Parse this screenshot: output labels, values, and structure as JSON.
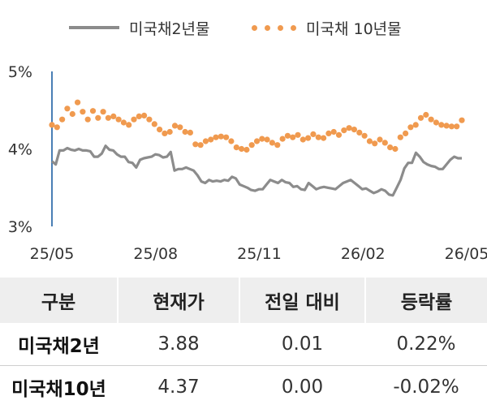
{
  "chart_data": {
    "type": "line",
    "title": "",
    "xlabel": "",
    "ylabel": "",
    "ylim": [
      3,
      5
    ],
    "yticks": [
      "3%",
      "4%",
      "5%"
    ],
    "xticks": [
      "25/05",
      "25/08",
      "25/11",
      "26/02",
      "26/05"
    ],
    "legend_position": "top",
    "grid": false,
    "series": [
      {
        "name": "미국채2년물",
        "style": "line",
        "color": "#8c8c8c",
        "values": [
          3.84,
          3.8,
          3.98,
          3.98,
          4.01,
          3.99,
          3.98,
          4.0,
          3.98,
          3.98,
          3.97,
          3.9,
          3.9,
          3.94,
          4.04,
          3.99,
          3.98,
          3.93,
          3.9,
          3.9,
          3.83,
          3.82,
          3.76,
          3.86,
          3.88,
          3.89,
          3.9,
          3.93,
          3.92,
          3.89,
          3.9,
          3.96,
          3.72,
          3.74,
          3.74,
          3.76,
          3.74,
          3.72,
          3.66,
          3.58,
          3.56,
          3.6,
          3.58,
          3.59,
          3.58,
          3.6,
          3.59,
          3.64,
          3.62,
          3.54,
          3.52,
          3.5,
          3.47,
          3.46,
          3.48,
          3.48,
          3.54,
          3.6,
          3.58,
          3.56,
          3.6,
          3.57,
          3.56,
          3.51,
          3.52,
          3.48,
          3.47,
          3.56,
          3.52,
          3.48,
          3.5,
          3.51,
          3.5,
          3.49,
          3.48,
          3.52,
          3.56,
          3.58,
          3.6,
          3.56,
          3.52,
          3.48,
          3.49,
          3.46,
          3.43,
          3.45,
          3.48,
          3.46,
          3.41,
          3.4,
          3.5,
          3.6,
          3.75,
          3.82,
          3.82,
          3.95,
          3.9,
          3.83,
          3.8,
          3.78,
          3.77,
          3.74,
          3.74,
          3.8,
          3.86,
          3.9,
          3.88,
          3.88
        ]
      },
      {
        "name": "미국채 10년물",
        "style": "dots",
        "color": "#f09a4f",
        "values": [
          4.31,
          4.28,
          4.38,
          4.52,
          4.45,
          4.6,
          4.48,
          4.38,
          4.49,
          4.4,
          4.48,
          4.4,
          4.42,
          4.38,
          4.34,
          4.31,
          4.38,
          4.42,
          4.43,
          4.38,
          4.32,
          4.25,
          4.2,
          4.22,
          4.3,
          4.28,
          4.22,
          4.21,
          4.06,
          4.05,
          4.1,
          4.12,
          4.15,
          4.16,
          4.15,
          4.1,
          4.02,
          4.0,
          3.99,
          4.05,
          4.1,
          4.13,
          4.12,
          4.08,
          4.05,
          4.13,
          4.17,
          4.15,
          4.18,
          4.12,
          4.14,
          4.19,
          4.15,
          4.14,
          4.2,
          4.22,
          4.18,
          4.24,
          4.27,
          4.25,
          4.21,
          4.17,
          4.1,
          4.07,
          4.12,
          4.08,
          4.02,
          4.0,
          4.15,
          4.2,
          4.28,
          4.31,
          4.4,
          4.44,
          4.38,
          4.34,
          4.31,
          4.3,
          4.29,
          4.29,
          4.37
        ]
      }
    ]
  },
  "table": {
    "headers": [
      "구분",
      "현재가",
      "전일 대비",
      "등락률"
    ],
    "rows": [
      [
        "미국채2년",
        "3.88",
        "0.01",
        "0.22%"
      ],
      [
        "미국채10년",
        "4.37",
        "0.00",
        "-0.02%"
      ]
    ]
  }
}
